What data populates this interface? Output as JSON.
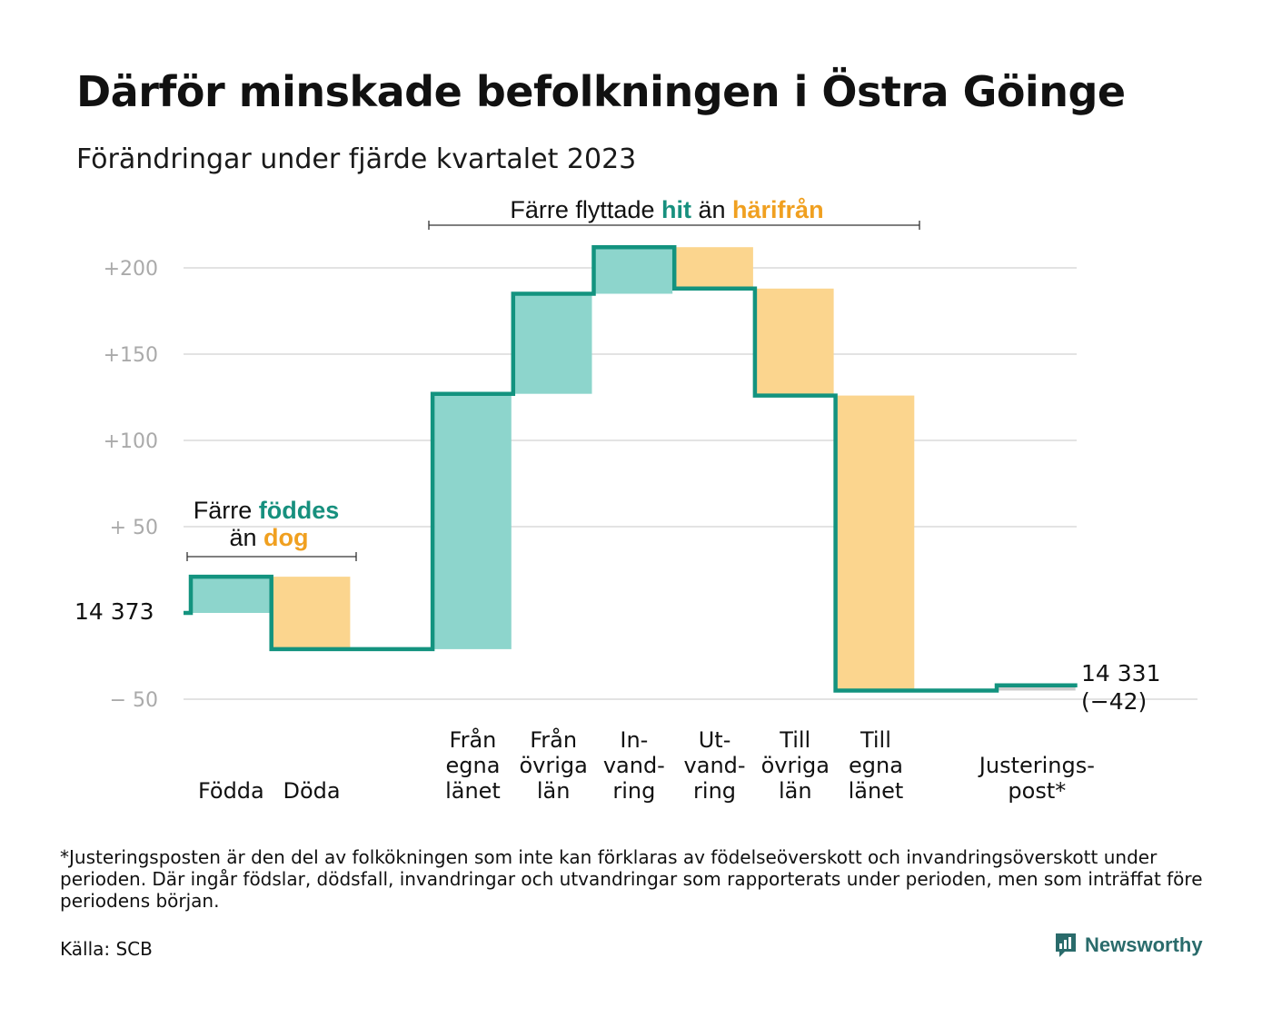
{
  "header": {
    "title": "Därför minskade befolkningen i Östra Göinge",
    "subtitle": "Förändringar under fjärde kvartalet 2023"
  },
  "annotations": {
    "births_deaths": {
      "line1_prefix": "Färre ",
      "line1_highlight": "föddes",
      "line2_prefix": "än ",
      "line2_highlight": "dog"
    },
    "migration": {
      "prefix": "Färre flyttade ",
      "highlight_in": "hit",
      "middle": " än ",
      "highlight_out": "härifrån"
    }
  },
  "chart_data": {
    "type": "waterfall",
    "start_value": 14373,
    "start_label": "14 373",
    "end_label_line1": "14 331",
    "end_label_line2": "(−42)",
    "ylim": [
      -55,
      215
    ],
    "yticks": [
      {
        "value": 200,
        "label": "+200"
      },
      {
        "value": 150,
        "label": "+150"
      },
      {
        "value": 100,
        "label": "+100"
      },
      {
        "value": 50,
        "label": "+  50"
      },
      {
        "value": -50,
        "label": "−  50"
      }
    ],
    "categories": [
      {
        "label_lines": [
          "Födda"
        ],
        "change": 21,
        "kind": "in"
      },
      {
        "label_lines": [
          "Döda"
        ],
        "change": -42,
        "kind": "out"
      },
      {
        "label_lines": [
          ""
        ],
        "change": 0,
        "kind": "spacer"
      },
      {
        "label_lines": [
          "Från",
          "egna",
          "länet"
        ],
        "change": 148,
        "kind": "in"
      },
      {
        "label_lines": [
          "Från",
          "övriga",
          "län"
        ],
        "change": 58,
        "kind": "in"
      },
      {
        "label_lines": [
          "In-",
          "vand-",
          "ring"
        ],
        "change": 27,
        "kind": "in"
      },
      {
        "label_lines": [
          "Ut-",
          "vand-",
          "ring"
        ],
        "change": -24,
        "kind": "out"
      },
      {
        "label_lines": [
          "Till",
          "övriga",
          "län"
        ],
        "change": -62,
        "kind": "out"
      },
      {
        "label_lines": [
          "Till",
          "egna",
          "länet"
        ],
        "change": -171,
        "kind": "out"
      },
      {
        "label_lines": [
          ""
        ],
        "change": 0,
        "kind": "spacer"
      },
      {
        "label_lines": [
          "Justerings-",
          "post*"
        ],
        "change": 3,
        "kind": "adjust"
      }
    ],
    "colors": {
      "in_fill": "#8dd5cc",
      "out_fill": "#fbd58e",
      "adjust_fill": "#cccccc",
      "step_line": "#13937f",
      "grid": "#e3e3e3",
      "tick_label": "#aaaaaa",
      "accent_in": "#17907e",
      "accent_out": "#f0a020"
    }
  },
  "footer": {
    "footnote": "*Justeringsposten är den del av folkökningen som inte kan förklaras av födelseöverskott och invandringsöverskott under perioden. Där ingår födslar, dödsfall, invandringar och utvandringar som rapporterats under perioden, men som inträffat före periodens början.",
    "source": "Källa: SCB",
    "brand": "Newsworthy",
    "brand_icon": "newsworthy-chart-icon"
  }
}
